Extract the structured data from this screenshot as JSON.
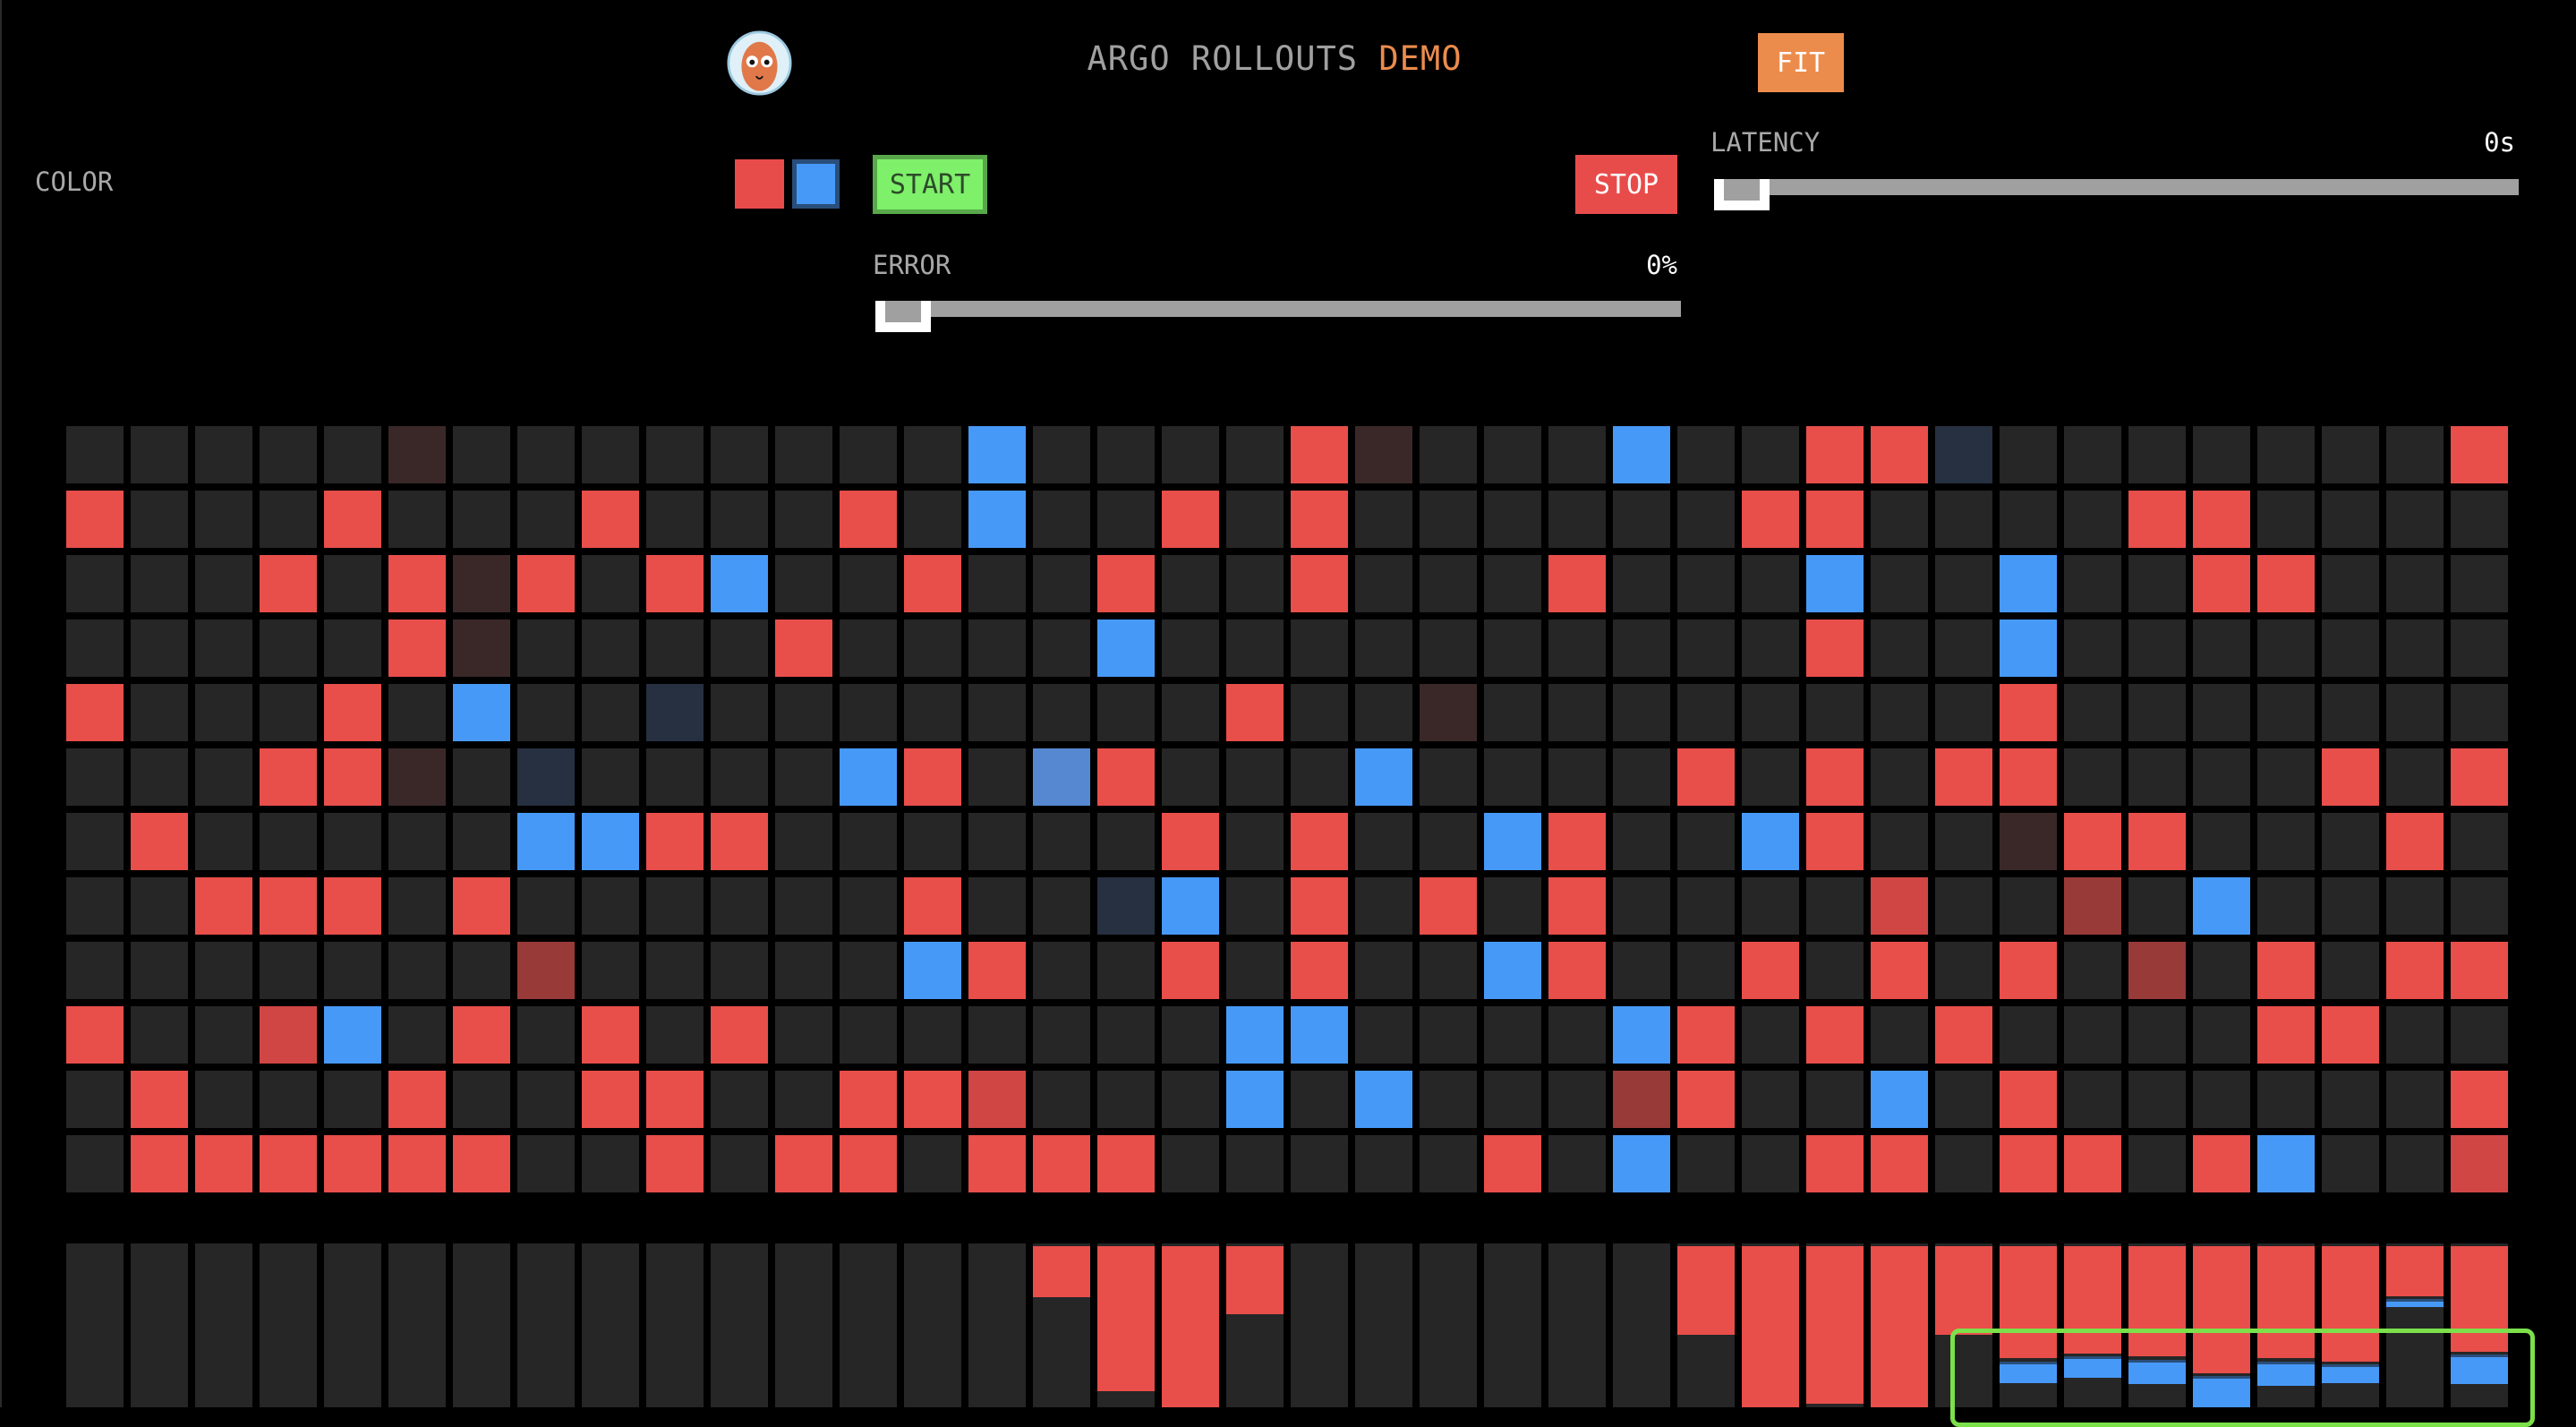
{
  "header": {
    "title_main": "ARGO ROLLOUTS",
    "title_accent": "DEMO",
    "fit_label": "FIT",
    "logo_icon": "argo-octopus-mascot-icon"
  },
  "controls": {
    "color_label": "COLOR",
    "color_options": [
      "red",
      "blue"
    ],
    "selected_color": "blue",
    "start_label": "START",
    "stop_label": "STOP",
    "latency": {
      "label": "LATENCY",
      "value": "0s",
      "level": 0
    },
    "error": {
      "label": "ERROR",
      "value": "0%",
      "level": 0
    }
  },
  "colors": {
    "red": "#e84e4a",
    "blue": "#4799f8",
    "empty": "#262626",
    "accent": "#ec8c4c",
    "start": "#7ef06a",
    "canary_outline": "#7ce04a"
  },
  "grid": {
    "legend": {
      ".": "#262626",
      "R": "#e84e4a",
      "B": "#4799f8",
      "r": "#3a2828",
      "b": "#263040",
      "m": "#5588d0",
      "d": "#983a38",
      "q": "#d04644"
    },
    "rows": [
      ".....r........B....Rr...B..RRb.......R",
      "R...R...R...R.B..R.R......RR....RR....",
      "...R.RrR.RB..R..R..R...R...B..B..RR...",
      ".....Rr....R....B..........R..B.......",
      "R...R.B..b........R..r........R.......",
      "...RRr.b....BR.mR...B....R.R.RR....R.R",
      ".R.....BBRR......R.R..BR..BR..rRR...R.",
      "..RRR.R......R..bB.R.R.R....q..d.B....",
      ".......d.....BR..R.R..BR..R.R.R.d.R.RR",
      "R..qB.R.R.R.......BB....BR.R.R....RR..",
      ".R...R..RR..RRq...B.B...dR..B.R......R",
      ".RRRRRR..R.RR.RRR.....R.B..RR.RR.RB..q"
    ]
  },
  "bars": [
    {
      "red": 0,
      "blue": 0
    },
    {
      "red": 0,
      "blue": 0
    },
    {
      "red": 0,
      "blue": 0
    },
    {
      "red": 0,
      "blue": 0
    },
    {
      "red": 0,
      "blue": 0
    },
    {
      "red": 0,
      "blue": 0
    },
    {
      "red": 0,
      "blue": 0
    },
    {
      "red": 0,
      "blue": 0
    },
    {
      "red": 0,
      "blue": 0
    },
    {
      "red": 0,
      "blue": 0
    },
    {
      "red": 0,
      "blue": 0
    },
    {
      "red": 0,
      "blue": 0
    },
    {
      "red": 0,
      "blue": 0
    },
    {
      "red": 0,
      "blue": 0
    },
    {
      "red": 0,
      "blue": 0
    },
    {
      "red": 33,
      "blue": 0
    },
    {
      "red": 90,
      "blue": 0
    },
    {
      "red": 100,
      "blue": 0
    },
    {
      "red": 43,
      "blue": 0
    },
    {
      "red": 0,
      "blue": 0
    },
    {
      "red": 0,
      "blue": 0
    },
    {
      "red": 0,
      "blue": 0
    },
    {
      "red": 0,
      "blue": 0
    },
    {
      "red": 0,
      "blue": 0
    },
    {
      "red": 0,
      "blue": 0
    },
    {
      "red": 56,
      "blue": 0
    },
    {
      "red": 100,
      "blue": 0
    },
    {
      "red": 98,
      "blue": 0
    },
    {
      "red": 100,
      "blue": 0
    },
    {
      "red": 56,
      "blue": 0
    },
    {
      "red": 70,
      "blue": 13
    },
    {
      "red": 67,
      "blue": 13
    },
    {
      "red": 69,
      "blue": 15
    },
    {
      "red": 79,
      "blue": 20
    },
    {
      "red": 70,
      "blue": 15
    },
    {
      "red": 72,
      "blue": 11
    },
    {
      "red": 32,
      "blue": 5
    },
    {
      "red": 66,
      "blue": 18
    }
  ]
}
